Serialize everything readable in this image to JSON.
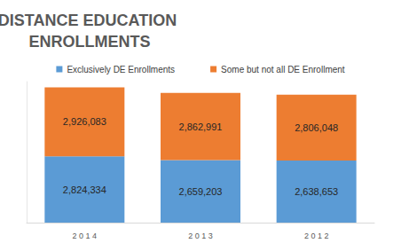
{
  "chart_data": {
    "type": "bar",
    "title": "DISTANCE EDUCATION ENROLLMENTS",
    "categories": [
      "2014",
      "2013",
      "2012"
    ],
    "series": [
      {
        "name": "Exclusively DE Enrollments",
        "color": "#5b9bd5",
        "values": [
          2824334,
          2659203,
          2638653
        ],
        "value_labels": [
          "2,824,334",
          "2,659,203",
          "2,638,653"
        ]
      },
      {
        "name": "Some but not all DE Enrollment",
        "color": "#ed7d31",
        "values": [
          2926083,
          2862991,
          2806048
        ],
        "value_labels": [
          "2,926,083",
          "2,862,991",
          "2,806,048"
        ]
      }
    ],
    "ylim": [
      0,
      6000000
    ],
    "stacked": true,
    "data_labels": true,
    "legend": "top",
    "grid": false,
    "tick_labels": "x"
  }
}
